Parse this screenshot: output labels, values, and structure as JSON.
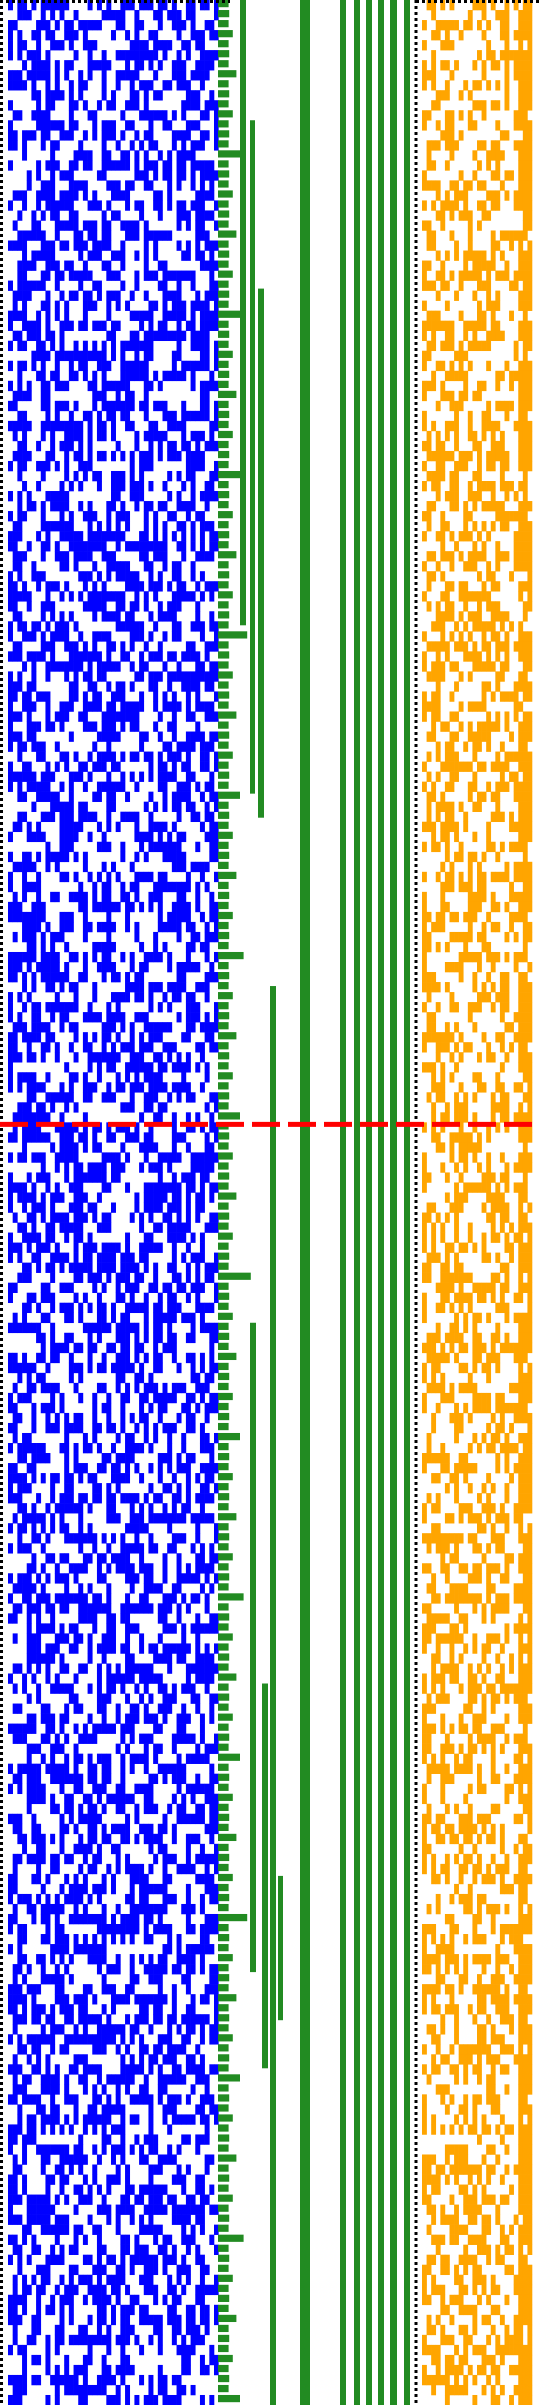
{
  "visualization": {
    "kind": "bit-matrix-panels",
    "rows": 240,
    "seed": 20240607,
    "background_color": "#ffffff",
    "border_style": "dotted",
    "border_color": "#000000",
    "marker_row_fraction": 0.4675,
    "marker_style": "dashed",
    "marker_color": "#ff0000",
    "panels": [
      {
        "name": "random-bits",
        "color": "#0000ff",
        "density": 0.5
      },
      {
        "name": "carry-staircase",
        "color": "#228b22",
        "pattern": "binary-counter"
      },
      {
        "name": "sparse-bits",
        "color": "#ffa500",
        "density": 0.45
      }
    ]
  }
}
